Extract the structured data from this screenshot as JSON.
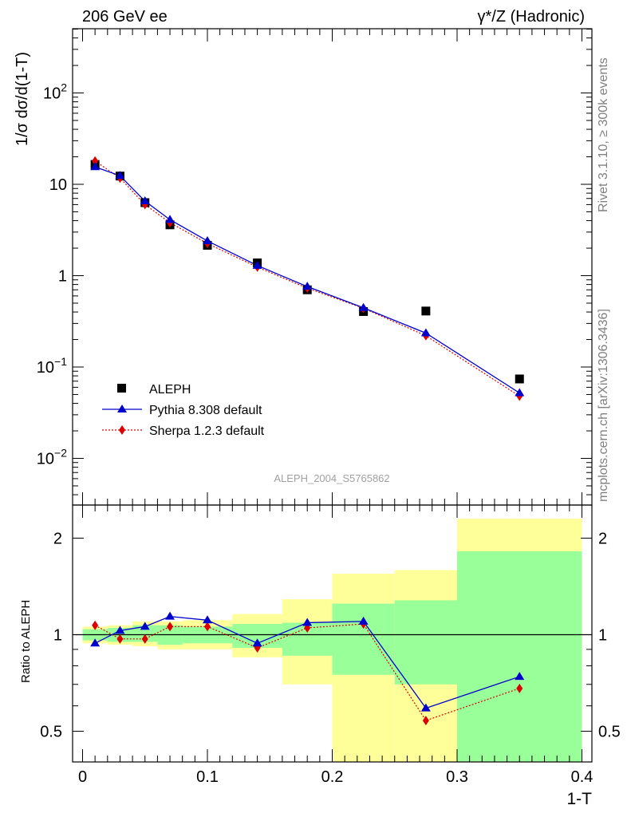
{
  "header": {
    "left_title": "206 GeV ee",
    "right_title": "γ*/Z (Hadronic)"
  },
  "side_text": {
    "rivet": "Rivet 3.1.10, ≥ 300k events",
    "mcplots": "mcplots.cern.ch [arXiv:1306.3436]"
  },
  "watermark": "ALEPH_2004_S5765862",
  "axes": {
    "ylabel_main": "1/σ  dσ/d(1-T)",
    "ylabel_ratio": "Ratio to ALEPH",
    "xlabel": "1-T",
    "main_yticks": [
      {
        "value": 0.01,
        "base": "10",
        "exp": "−2"
      },
      {
        "value": 0.1,
        "base": "10",
        "exp": "−1"
      },
      {
        "value": 1,
        "base": "1",
        "exp": ""
      },
      {
        "value": 10,
        "base": "10",
        "exp": ""
      },
      {
        "value": 100,
        "base": "10",
        "exp": "2"
      }
    ],
    "ratio_yticks_left": [
      "2",
      "1",
      "0.5"
    ],
    "ratio_yticks_right": [
      "2",
      "1",
      "0.5"
    ],
    "ratio_ytick_values": [
      2,
      1,
      0.5
    ],
    "xticks": [
      "0",
      "0.1",
      "0.2",
      "0.3",
      "0.4"
    ],
    "xtick_values": [
      0,
      0.1,
      0.2,
      0.3,
      0.4
    ]
  },
  "legend": [
    {
      "label": "ALEPH",
      "color": "#000000",
      "marker": "square"
    },
    {
      "label": "Pythia 8.308 default",
      "color": "#0000cc",
      "marker": "triangle"
    },
    {
      "label": "Sherpa 1.2.3 default",
      "color": "#dd0000",
      "marker": "diamond"
    }
  ],
  "chart_data": {
    "type": "line",
    "title": "206 GeV ee — γ*/Z (Hadronic)",
    "xlabel": "1-T",
    "ylabel": "1/σ dσ/d(1-T)",
    "xlim": [
      0,
      0.4
    ],
    "ylim": [
      0.003,
      500
    ],
    "yscale": "log",
    "ratio_ylim": [
      0.35,
      2.3
    ],
    "x": [
      0.01,
      0.03,
      0.05,
      0.07,
      0.1,
      0.14,
      0.18,
      0.225,
      0.275,
      0.35
    ],
    "bin_edges": [
      0,
      0.02,
      0.04,
      0.06,
      0.08,
      0.12,
      0.16,
      0.2,
      0.25,
      0.3,
      0.4
    ],
    "series": [
      {
        "name": "ALEPH",
        "values": [
          16.5,
          12.3,
          6.3,
          3.6,
          2.15,
          1.38,
          0.7,
          0.405,
          0.41,
          0.074
        ]
      },
      {
        "name": "Pythia 8.308 default",
        "values": [
          15.5,
          12.4,
          6.55,
          4.1,
          2.4,
          1.29,
          0.76,
          0.445,
          0.235,
          0.052
        ]
      },
      {
        "name": "Sherpa 1.2.3 default",
        "values": [
          18.0,
          11.7,
          6.0,
          3.8,
          2.25,
          1.24,
          0.73,
          0.44,
          0.22,
          0.048
        ]
      }
    ],
    "ratio_series": [
      {
        "name": "Pythia 8.308 default",
        "values": [
          0.94,
          1.03,
          1.06,
          1.14,
          1.11,
          0.94,
          1.09,
          1.1,
          0.59,
          0.74
        ]
      },
      {
        "name": "Sherpa 1.2.3 default",
        "values": [
          1.07,
          0.97,
          0.97,
          1.06,
          1.06,
          0.91,
          1.05,
          1.08,
          0.54,
          0.68
        ]
      }
    ],
    "uncertainty_bands": {
      "inner": [
        [
          0.96,
          1.04
        ],
        [
          0.95,
          1.05
        ],
        [
          0.95,
          1.07
        ],
        [
          0.93,
          1.07
        ],
        [
          0.94,
          1.06
        ],
        [
          0.91,
          1.08
        ],
        [
          0.86,
          1.09
        ],
        [
          0.75,
          1.25
        ],
        [
          0.7,
          1.28
        ],
        [
          0.35,
          1.82
        ]
      ],
      "outer": [
        [
          0.94,
          1.06
        ],
        [
          0.93,
          1.07
        ],
        [
          0.92,
          1.1
        ],
        [
          0.9,
          1.1
        ],
        [
          0.9,
          1.11
        ],
        [
          0.85,
          1.16
        ],
        [
          0.7,
          1.29
        ],
        [
          0.37,
          1.55
        ],
        [
          0.35,
          1.59
        ],
        [
          0.35,
          2.3
        ]
      ]
    }
  }
}
